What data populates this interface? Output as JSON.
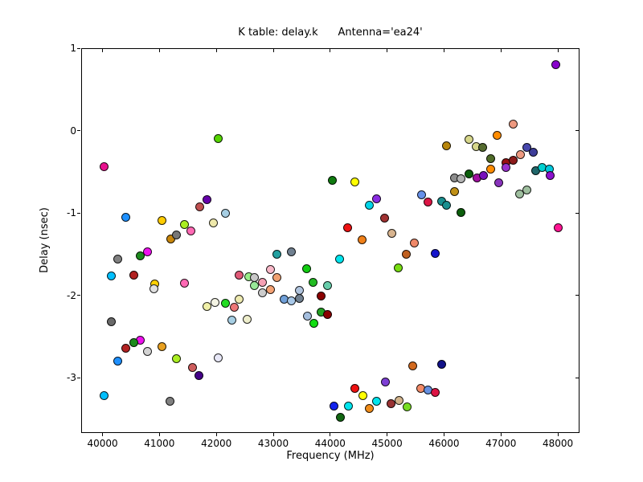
{
  "chart_data": {
    "type": "scatter",
    "title": "K table: delay.k      Antenna='ea24'",
    "xlabel": "Frequency (MHz)",
    "ylabel": "Delay (nsec)",
    "xlim": [
      39625,
      48380
    ],
    "ylim": [
      -3.67,
      1.0
    ],
    "x_ticks": [
      40000,
      41000,
      42000,
      43000,
      44000,
      45000,
      46000,
      47000,
      48000
    ],
    "y_ticks": [
      1,
      0,
      -1,
      -2,
      -3
    ],
    "grid": false,
    "legend": null,
    "marker": "circle",
    "marker_size_px": 9,
    "points": [
      [
        40010,
        -0.43,
        "#e8118e"
      ],
      [
        42025,
        -0.09,
        "#55d400"
      ],
      [
        47955,
        0.81,
        "#8800cc"
      ],
      [
        47205,
        0.09,
        "#ee9980"
      ],
      [
        46925,
        -0.05,
        "#ff8c00"
      ],
      [
        46430,
        -0.1,
        "#d6d68a"
      ],
      [
        46035,
        -0.17,
        "#b8860b"
      ],
      [
        46545,
        -0.18,
        "#d6d68a"
      ],
      [
        46670,
        -0.19,
        "#556b2f"
      ],
      [
        47445,
        -0.19,
        "#4747ad"
      ],
      [
        47560,
        -0.25,
        "#3d3d99"
      ],
      [
        47335,
        -0.28,
        "#ee9980"
      ],
      [
        46810,
        -0.33,
        "#4f6b28"
      ],
      [
        47075,
        -0.38,
        "#991111"
      ],
      [
        47195,
        -0.35,
        "#8b1a1a"
      ],
      [
        46810,
        -0.46,
        "#ff8c00"
      ],
      [
        47080,
        -0.44,
        "#9932cc"
      ],
      [
        47600,
        -0.48,
        "#20666a"
      ],
      [
        47715,
        -0.44,
        "#00d0d0"
      ],
      [
        47840,
        -0.46,
        "#00c8dd"
      ],
      [
        47855,
        -0.54,
        "#8a11cc"
      ],
      [
        46430,
        -0.52,
        "#0b5e0b"
      ],
      [
        46560,
        -0.56,
        "#a111a1"
      ],
      [
        46685,
        -0.54,
        "#7711bb"
      ],
      [
        46165,
        -0.56,
        "#8c8c8c"
      ],
      [
        46290,
        -0.57,
        "#b3b3b3"
      ],
      [
        46940,
        -0.62,
        "#8833bb"
      ],
      [
        47445,
        -0.71,
        "#9fbf9f"
      ],
      [
        47320,
        -0.76,
        "#9fbf9f"
      ],
      [
        46165,
        -0.73,
        "#c09016"
      ],
      [
        45585,
        -0.77,
        "#6690e8"
      ],
      [
        45700,
        -0.86,
        "#dc1444"
      ],
      [
        45950,
        -0.85,
        "#1a8f8f"
      ],
      [
        46035,
        -0.9,
        "#1a8f8f"
      ],
      [
        46290,
        -0.98,
        "#0b5e0b"
      ],
      [
        47985,
        -1.17,
        "#ff1493"
      ],
      [
        45825,
        -1.48,
        "#1515cc"
      ],
      [
        45470,
        -1.35,
        "#f08868"
      ],
      [
        44030,
        -0.59,
        "#0f7a0f"
      ],
      [
        44425,
        -0.61,
        "#ffff00"
      ],
      [
        44805,
        -0.82,
        "#8a2be2"
      ],
      [
        44670,
        -0.9,
        "#00d4e8"
      ],
      [
        44935,
        -1.05,
        "#a03232"
      ],
      [
        44285,
        -1.17,
        "#ee1111"
      ],
      [
        45070,
        -1.24,
        "#d8b48f"
      ],
      [
        44540,
        -1.32,
        "#f08019"
      ],
      [
        45325,
        -1.49,
        "#c06020"
      ],
      [
        44155,
        -1.55,
        "#00e5ee"
      ],
      [
        45175,
        -1.66,
        "#77dd11"
      ],
      [
        41815,
        -0.83,
        "#6600aa"
      ],
      [
        41700,
        -0.92,
        "#c05050"
      ],
      [
        42150,
        -0.99,
        "#a6cee3"
      ],
      [
        40400,
        -1.04,
        "#1e90ff"
      ],
      [
        41035,
        -1.08,
        "#ffcc00"
      ],
      [
        41420,
        -1.13,
        "#aaee22"
      ],
      [
        41940,
        -1.11,
        "#eee8aa"
      ],
      [
        41545,
        -1.21,
        "#ff69b4"
      ],
      [
        41180,
        -1.31,
        "#c8860b"
      ],
      [
        41290,
        -1.26,
        "#777777"
      ],
      [
        40655,
        -1.51,
        "#1d8a1d"
      ],
      [
        40780,
        -1.46,
        "#ee11ee"
      ],
      [
        40260,
        -1.55,
        "#808080"
      ],
      [
        40145,
        -1.75,
        "#00bfff"
      ],
      [
        40530,
        -1.74,
        "#b22222"
      ],
      [
        40910,
        -1.85,
        "#ffd000"
      ],
      [
        40895,
        -1.91,
        "#e0e0e0"
      ],
      [
        41420,
        -1.84,
        "#ff69b4"
      ],
      [
        42390,
        -1.74,
        "#e05977"
      ],
      [
        42550,
        -1.76,
        "#99ee88"
      ],
      [
        42660,
        -1.77,
        "#c8c8c8"
      ],
      [
        42790,
        -1.83,
        "#f4a0b4"
      ],
      [
        43055,
        -1.77,
        "#f0a070"
      ],
      [
        42930,
        -1.68,
        "#f8b8c8"
      ],
      [
        42660,
        -1.87,
        "#98e898"
      ],
      [
        42930,
        -1.92,
        "#f4a274"
      ],
      [
        42790,
        -1.96,
        "#cccccc"
      ],
      [
        43565,
        -1.67,
        "#11cc11"
      ],
      [
        43055,
        -1.49,
        "#22a0a0"
      ],
      [
        43310,
        -1.46,
        "#708090"
      ],
      [
        43685,
        -1.83,
        "#22bb22"
      ],
      [
        43945,
        -1.87,
        "#66cdaa"
      ],
      [
        43820,
        -2.0,
        "#8b0000"
      ],
      [
        43170,
        -2.04,
        "#6f9fd8"
      ],
      [
        43310,
        -2.06,
        "#a8c8e8"
      ],
      [
        43440,
        -2.03,
        "#708090"
      ],
      [
        43440,
        -1.93,
        "#b0c4de"
      ],
      [
        43580,
        -2.24,
        "#a4bede"
      ],
      [
        43820,
        -2.19,
        "#22a022"
      ],
      [
        43945,
        -2.22,
        "#8b0000"
      ],
      [
        43705,
        -2.33,
        "#11dd11"
      ],
      [
        42390,
        -2.04,
        "#eeeab0"
      ],
      [
        41815,
        -2.12,
        "#f0f0a8"
      ],
      [
        41955,
        -2.08,
        "#f4f4e4"
      ],
      [
        42150,
        -2.09,
        "#22dd22"
      ],
      [
        42295,
        -2.13,
        "#ee7777"
      ],
      [
        42265,
        -2.29,
        "#a6cee3"
      ],
      [
        42530,
        -2.28,
        "#eeeecc"
      ],
      [
        40145,
        -2.31,
        "#696969"
      ],
      [
        40655,
        -2.53,
        "#ee11ee"
      ],
      [
        40530,
        -2.56,
        "#1d8a1d"
      ],
      [
        40400,
        -2.63,
        "#b22222"
      ],
      [
        41035,
        -2.61,
        "#e8a020"
      ],
      [
        40780,
        -2.67,
        "#d3d3d3"
      ],
      [
        40260,
        -2.79,
        "#1e90ff"
      ],
      [
        41290,
        -2.76,
        "#aaee22"
      ],
      [
        41560,
        -2.87,
        "#cd5c5c"
      ],
      [
        41685,
        -2.96,
        "#440088"
      ],
      [
        42025,
        -2.75,
        "#e8e8f8"
      ],
      [
        40020,
        -3.21,
        "#00bfff"
      ],
      [
        41165,
        -3.28,
        "#808080"
      ],
      [
        45440,
        -2.85,
        "#d2691e"
      ],
      [
        45950,
        -2.83,
        "#111188"
      ],
      [
        45570,
        -3.12,
        "#f28a68"
      ],
      [
        45700,
        -3.14,
        "#6690e0"
      ],
      [
        45825,
        -3.17,
        "#dc1444"
      ],
      [
        44950,
        -3.04,
        "#7d3fd4"
      ],
      [
        44425,
        -3.12,
        "#ee1111"
      ],
      [
        44555,
        -3.21,
        "#ffff00"
      ],
      [
        44805,
        -3.28,
        "#00e5ee"
      ],
      [
        45060,
        -3.3,
        "#993333"
      ],
      [
        45200,
        -3.27,
        "#d2b48c"
      ],
      [
        45330,
        -3.34,
        "#77dd22"
      ],
      [
        44045,
        -3.33,
        "#1122ee"
      ],
      [
        44300,
        -3.33,
        "#00e5ee"
      ],
      [
        44680,
        -3.36,
        "#f08c19"
      ],
      [
        44170,
        -3.47,
        "#116611"
      ]
    ]
  }
}
